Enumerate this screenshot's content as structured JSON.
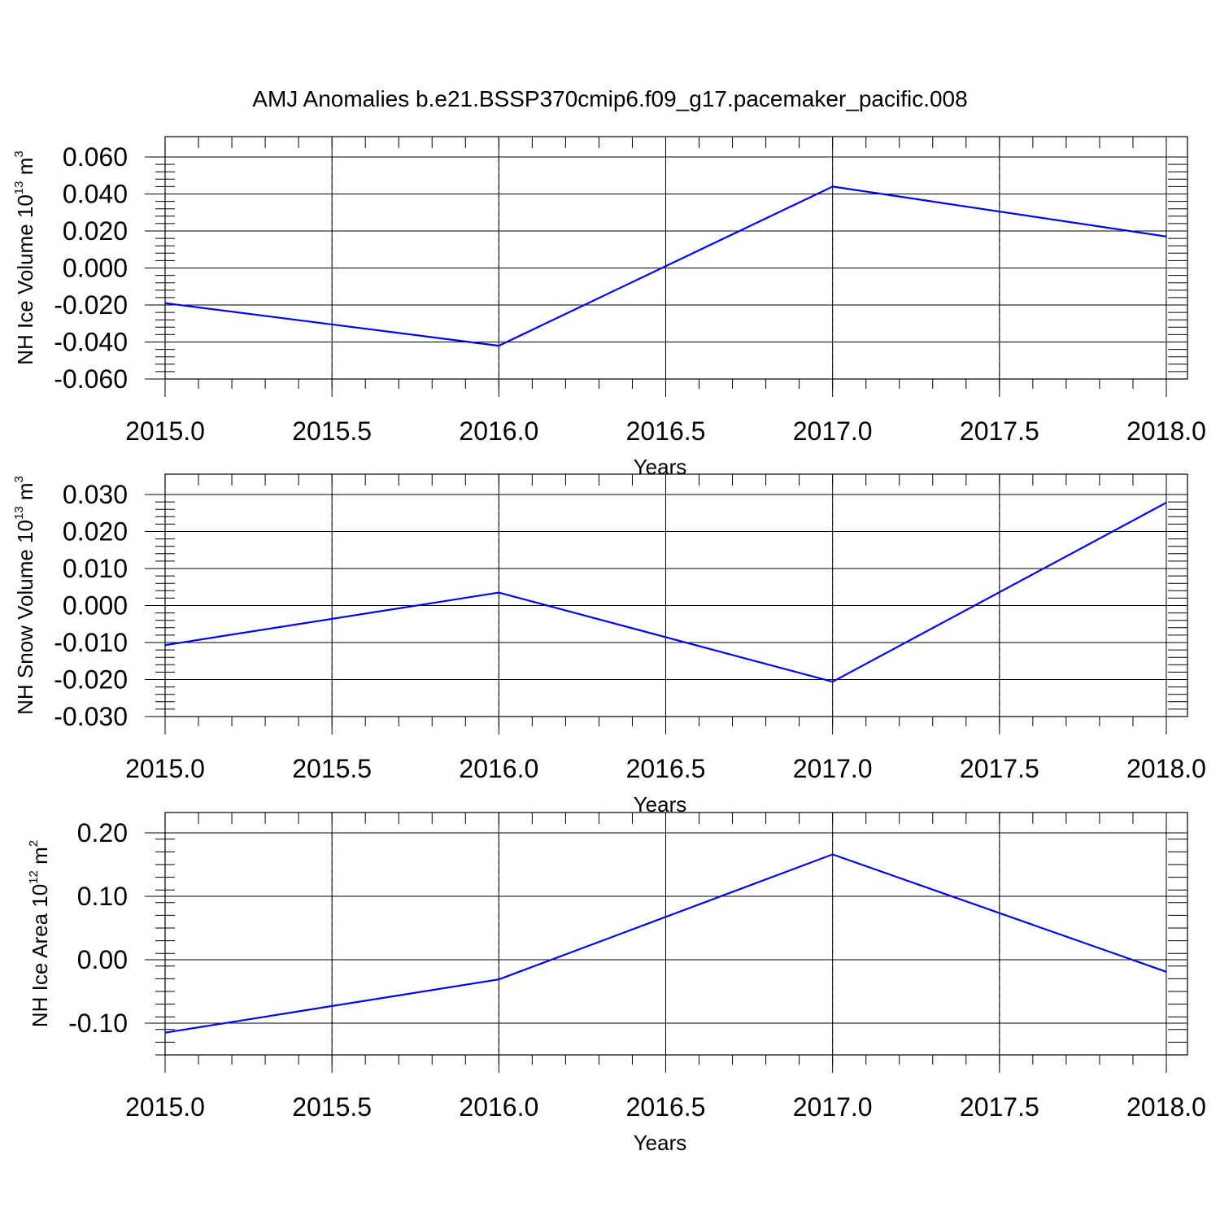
{
  "chart_data": {
    "title": "AMJ Anomalies b.e21.BSSP370cmip6.f09_g17.pacemaker_pacific.008",
    "line_color": "#0000ee",
    "panels": [
      {
        "type": "line",
        "ylabel": {
          "main": "NH Ice Volume 10",
          "exp": "13",
          "unit": " m",
          "unit_exp": "3"
        },
        "xlabel": "Years",
        "xlim": [
          2015.0,
          2018.0
        ],
        "ylim": [
          -0.06,
          0.06
        ],
        "xticks": [
          "2015.0",
          "2015.5",
          "2016.0",
          "2016.5",
          "2017.0",
          "2017.5",
          "2018.0"
        ],
        "yticks": [
          "-0.060",
          "-0.040",
          "-0.020",
          "0.000",
          "0.020",
          "0.040",
          "0.060"
        ],
        "x": [
          2015,
          2016,
          2017,
          2018
        ],
        "y": [
          -0.019,
          -0.042,
          0.044,
          0.017
        ]
      },
      {
        "type": "line",
        "ylabel": {
          "main": "NH Snow Volume 10",
          "exp": "13",
          "unit": " m",
          "unit_exp": "3"
        },
        "xlabel": "Years",
        "xlim": [
          2015.0,
          2018.0
        ],
        "ylim": [
          -0.03,
          0.03
        ],
        "xticks": [
          "2015.0",
          "2015.5",
          "2016.0",
          "2016.5",
          "2017.0",
          "2017.5",
          "2018.0"
        ],
        "yticks": [
          "-0.030",
          "-0.020",
          "-0.010",
          "0.000",
          "0.010",
          "0.020",
          "0.030"
        ],
        "x": [
          2015,
          2016,
          2017,
          2018
        ],
        "y": [
          -0.0107,
          0.0035,
          -0.0206,
          0.0278
        ]
      },
      {
        "type": "line",
        "ylabel": {
          "main": "NH Ice Area 10",
          "exp": "12",
          "unit": " m",
          "unit_exp": "2"
        },
        "xlabel": "Years",
        "xlim": [
          2015.0,
          2018.0
        ],
        "ylim": [
          -0.15,
          0.2
        ],
        "xticks": [
          "2015.0",
          "2015.5",
          "2016.0",
          "2016.5",
          "2017.0",
          "2017.5",
          "2018.0"
        ],
        "yticks": [
          "-0.10",
          "0.00",
          "0.10",
          "0.20"
        ],
        "ytick_values": [
          -0.1,
          0.0,
          0.1,
          0.2
        ],
        "x": [
          2015,
          2016,
          2017,
          2018
        ],
        "y": [
          -0.115,
          -0.031,
          0.166,
          -0.019
        ]
      }
    ]
  }
}
